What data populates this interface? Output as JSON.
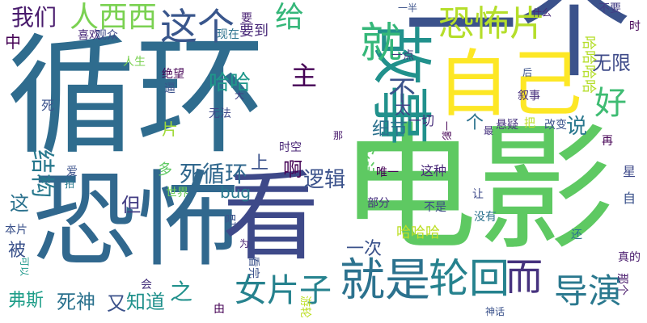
{
  "words": [
    {
      "text": "循环",
      "color": "#2f6c8e",
      "vertical": false
    },
    {
      "text": "电影",
      "color": "#5ec962",
      "vertical": false
    },
    {
      "text": "恐怖",
      "color": "#31688e",
      "vertical": false
    },
    {
      "text": "看",
      "color": "#3e4989",
      "vertical": false
    },
    {
      "text": "一个",
      "color": "#3b528b",
      "vertical": false
    },
    {
      "text": "自己",
      "color": "#fde725",
      "vertical": false
    },
    {
      "text": "故事",
      "color": "#21918c",
      "vertical": true
    },
    {
      "text": "就",
      "color": "#35b779",
      "vertical": false
    },
    {
      "text": "就是",
      "color": "#2c728e",
      "vertical": false
    },
    {
      "text": "轮回",
      "color": "#26828e",
      "vertical": false
    },
    {
      "text": "而",
      "color": "#46327e",
      "vertical": false
    },
    {
      "text": "导演",
      "color": "#2a788e",
      "vertical": false
    },
    {
      "text": "女片子",
      "color": "#26828e",
      "vertical": false
    },
    {
      "text": "恐怖片",
      "color": "#b5de2b",
      "vertical": false
    },
    {
      "text": "这个",
      "color": "#39568c",
      "vertical": false
    },
    {
      "text": "人西西",
      "color": "#7ad151",
      "vertical": false
    },
    {
      "text": "给",
      "color": "#35b779",
      "vertical": false
    },
    {
      "text": "我们",
      "color": "#481a6c",
      "vertical": false
    },
    {
      "text": "好",
      "color": "#3fbc73",
      "vertical": false
    },
    {
      "text": "不",
      "color": "#3b528b",
      "vertical": false
    },
    {
      "text": "主",
      "color": "#440154",
      "vertical": false
    },
    {
      "text": "说",
      "color": "#2a788e",
      "vertical": false
    },
    {
      "text": "无限",
      "color": "#3e4a89",
      "vertical": false
    },
    {
      "text": "死循环",
      "color": "#31688e",
      "vertical": false
    },
    {
      "text": "逻辑",
      "color": "#3b528b",
      "vertical": false
    },
    {
      "text": "啊",
      "color": "#440154",
      "vertical": false
    },
    {
      "text": "细节",
      "color": "#2c728e",
      "vertical": false
    },
    {
      "text": "永远",
      "color": "#5ec962",
      "vertical": true
    },
    {
      "text": "结构",
      "color": "#29798e",
      "vertical": true
    },
    {
      "text": "哈哈",
      "color": "#1f988b",
      "vertical": false
    },
    {
      "text": "片",
      "color": "#a0da39",
      "vertical": false
    },
    {
      "text": "太",
      "color": "#414487",
      "vertical": false
    },
    {
      "text": "上",
      "color": "#3b528b",
      "vertical": false
    },
    {
      "text": "多",
      "color": "#5ec962",
      "vertical": false
    },
    {
      "text": "这",
      "color": "#2c728e",
      "vertical": false
    },
    {
      "text": "但",
      "color": "#433d84",
      "vertical": false
    },
    {
      "text": "之",
      "color": "#21918c",
      "vertical": false
    },
    {
      "text": "被",
      "color": "#3b528b",
      "vertical": false
    },
    {
      "text": "弗斯",
      "color": "#1f9e89",
      "vertical": false
    },
    {
      "text": "死神",
      "color": "#2c728e",
      "vertical": false
    },
    {
      "text": "又",
      "color": "#3b528b",
      "vertical": false
    },
    {
      "text": "知道",
      "color": "#21918c",
      "vertical": false
    },
    {
      "text": "一次",
      "color": "#3b528b",
      "vertical": false
    },
    {
      "text": "中",
      "color": "#440154",
      "vertical": false
    },
    {
      "text": "要到",
      "color": "#482878",
      "vertical": false
    },
    {
      "text": "要",
      "color": "#482173",
      "vertical": false
    },
    {
      "text": "bug",
      "color": "#2a788e",
      "vertical": false
    },
    {
      "text": "哈哈哈",
      "color": "#bddf26",
      "vertical": false
    },
    {
      "text": "哈哈哈哈",
      "color": "#b5de2b",
      "vertical": true
    },
    {
      "text": "个",
      "color": "#2c728e",
      "vertical": false
    },
    {
      "text": "一切",
      "color": "#472d7b",
      "vertical": false
    },
    {
      "text": "这种",
      "color": "#482878",
      "vertical": false
    },
    {
      "text": "唯一",
      "color": "#440154",
      "vertical": false
    },
    {
      "text": "部分",
      "color": "#46327e",
      "vertical": false
    },
    {
      "text": "不是",
      "color": "#3e4989",
      "vertical": false
    },
    {
      "text": "世界",
      "color": "#6ece58",
      "vertical": false
    },
    {
      "text": "叙事",
      "color": "#472d7b",
      "vertical": false
    },
    {
      "text": "悬疑",
      "color": "#46327e",
      "vertical": false
    },
    {
      "text": "改变",
      "color": "#3b528b",
      "vertical": false
    },
    {
      "text": "时空",
      "color": "#482576",
      "vertical": false
    },
    {
      "text": "绝望",
      "color": "#440154",
      "vertical": false
    },
    {
      "text": "逼",
      "color": "#3b528b",
      "vertical": false
    },
    {
      "text": "人生",
      "color": "#7ad151",
      "vertical": false
    },
    {
      "text": "喜欢",
      "color": "#482878",
      "vertical": false
    },
    {
      "text": "观众",
      "color": "#3e4989",
      "vertical": false
    },
    {
      "text": "现在",
      "color": "#2c728e",
      "vertical": false
    },
    {
      "text": "一点",
      "color": "#46327e",
      "vertical": false
    },
    {
      "text": "一半",
      "color": "#3b528b",
      "vertical": false
    },
    {
      "text": "什么",
      "color": "#482878",
      "vertical": false
    },
    {
      "text": "不要",
      "color": "#433d84",
      "vertical": false
    },
    {
      "text": "时",
      "color": "#440154",
      "vertical": false
    },
    {
      "text": "后",
      "color": "#3b528b",
      "vertical": false
    },
    {
      "text": "最",
      "color": "#46327e",
      "vertical": false
    },
    {
      "text": "把",
      "color": "#bddf26",
      "vertical": false
    },
    {
      "text": "再",
      "color": "#440154",
      "vertical": false
    },
    {
      "text": "星",
      "color": "#3e4989",
      "vertical": false
    },
    {
      "text": "自",
      "color": "#3b528b",
      "vertical": false
    },
    {
      "text": "让",
      "color": "#3e4989",
      "vertical": false
    },
    {
      "text": "没有",
      "color": "#2c728e",
      "vertical": false
    },
    {
      "text": "还",
      "color": "#2c728e",
      "vertical": false
    },
    {
      "text": "真的",
      "color": "#481a6c",
      "vertical": false
    },
    {
      "text": "那个",
      "color": "#481a6c",
      "vertical": true
    },
    {
      "text": "神话",
      "color": "#3b528b",
      "vertical": false
    },
    {
      "text": "游轮",
      "color": "#bddf26",
      "vertical": true
    },
    {
      "text": "看完",
      "color": "#3b528b",
      "vertical": true
    },
    {
      "text": "由",
      "color": "#440154",
      "vertical": false
    },
    {
      "text": "会",
      "color": "#46327e",
      "vertical": false
    },
    {
      "text": "为",
      "color": "#482173",
      "vertical": false
    },
    {
      "text": "吧",
      "color": "#3b528b",
      "vertical": false
    },
    {
      "text": "本片",
      "color": "#3b528b",
      "vertical": false
    },
    {
      "text": "可以",
      "color": "#1f988b",
      "vertical": true
    },
    {
      "text": "爱",
      "color": "#3b528b",
      "vertical": false
    },
    {
      "text": "拍",
      "color": "#29798e",
      "vertical": false
    },
    {
      "text": "无法",
      "color": "#3e4989",
      "vertical": false
    },
    {
      "text": "死",
      "color": "#3b528b",
      "vertical": false
    },
    {
      "text": "大",
      "color": "#433d84",
      "vertical": false
    },
    {
      "text": "一影",
      "color": "#440154",
      "vertical": true
    },
    {
      "text": "那",
      "color": "#481a6c",
      "vertical": false
    }
  ]
}
